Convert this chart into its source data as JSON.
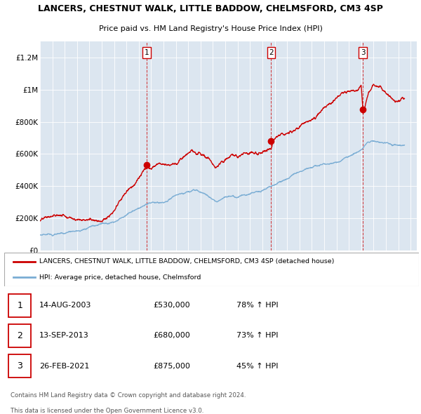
{
  "title": "LANCERS, CHESTNUT WALK, LITTLE BADDOW, CHELMSFORD, CM3 4SP",
  "subtitle": "Price paid vs. HM Land Registry's House Price Index (HPI)",
  "legend_line1": "LANCERS, CHESTNUT WALK, LITTLE BADDOW, CHELMSFORD, CM3 4SP (detached house)",
  "legend_line2": "HPI: Average price, detached house, Chelmsford",
  "red_color": "#cc0000",
  "blue_color": "#7aadd4",
  "background_color": "#dce6f0",
  "grid_color": "#ffffff",
  "sale_markers": [
    {
      "num": 1,
      "date": "14-AUG-2003",
      "price": 530000,
      "hpi_pct": "78%",
      "year": 2003.62
    },
    {
      "num": 2,
      "date": "13-SEP-2013",
      "price": 680000,
      "hpi_pct": "73%",
      "year": 2013.71
    },
    {
      "num": 3,
      "date": "26-FEB-2021",
      "price": 875000,
      "hpi_pct": "45%",
      "year": 2021.15
    }
  ],
  "ylim": [
    0,
    1300000
  ],
  "yticks": [
    0,
    200000,
    400000,
    600000,
    800000,
    1000000,
    1200000
  ],
  "ytick_labels": [
    "£0",
    "£200K",
    "£400K",
    "£600K",
    "£800K",
    "£1M",
    "£1.2M"
  ],
  "xmin": 1995,
  "xmax": 2025.5,
  "footer_line1": "Contains HM Land Registry data © Crown copyright and database right 2024.",
  "footer_line2": "This data is licensed under the Open Government Licence v3.0."
}
